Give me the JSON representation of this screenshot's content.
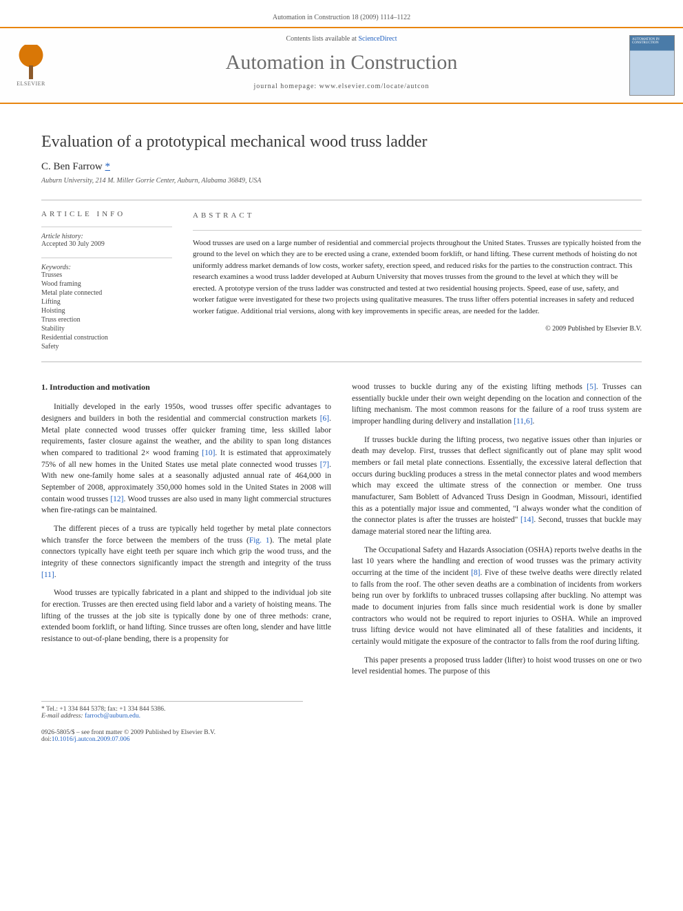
{
  "header": {
    "citation": "Automation in Construction 18 (2009) 1114–1122"
  },
  "banner": {
    "elsevier_label": "ELSEVIER",
    "contents_prefix": "Contents lists available at ",
    "contents_link": "ScienceDirect",
    "journal_title": "Automation in Construction",
    "homepage_prefix": "journal homepage: ",
    "homepage_url": "www.elsevier.com/locate/autcon",
    "cover_label": "AUTOMATION IN CONSTRUCTION"
  },
  "article": {
    "title": "Evaluation of a prototypical mechanical wood truss ladder",
    "author": "C. Ben Farrow",
    "author_marker": "*",
    "affiliation": "Auburn University, 214 M. Miller Gorrie Center, Auburn, Alabama 36849, USA"
  },
  "info": {
    "heading": "ARTICLE INFO",
    "history_label": "Article history:",
    "history_text": "Accepted 30 July 2009",
    "keywords_label": "Keywords:",
    "keywords": [
      "Trusses",
      "Wood framing",
      "Metal plate connected",
      "Lifting",
      "Hoisting",
      "Truss erection",
      "Stability",
      "Residential construction",
      "Safety"
    ]
  },
  "abstract": {
    "heading": "ABSTRACT",
    "text": "Wood trusses are used on a large number of residential and commercial projects throughout the United States. Trusses are typically hoisted from the ground to the level on which they are to be erected using a crane, extended boom forklift, or hand lifting. These current methods of hoisting do not uniformly address market demands of low costs, worker safety, erection speed, and reduced risks for the parties to the construction contract. This research examines a wood truss ladder developed at Auburn University that moves trusses from the ground to the level at which they will be erected. A prototype version of the truss ladder was constructed and tested at two residential housing projects. Speed, ease of use, safety, and worker fatigue were investigated for these two projects using qualitative measures. The truss lifter offers potential increases in safety and reduced worker fatigue. Additional trial versions, along with key improvements in specific areas, are needed for the ladder.",
    "copyright": "© 2009 Published by Elsevier B.V."
  },
  "body": {
    "section_heading": "1. Introduction and motivation",
    "left_paragraphs": [
      "Initially developed in the early 1950s, wood trusses offer specific advantages to designers and builders in both the residential and commercial construction markets [6]. Metal plate connected wood trusses offer quicker framing time, less skilled labor requirements, faster closure against the weather, and the ability to span long distances when compared to traditional 2× wood framing [10]. It is estimated that approximately 75% of all new homes in the United States use metal plate connected wood trusses [7]. With new one-family home sales at a seasonally adjusted annual rate of 464,000 in September of 2008, approximately 350,000 homes sold in the United States in 2008 will contain wood trusses [12]. Wood trusses are also used in many light commercial structures when fire-ratings can be maintained.",
      "The different pieces of a truss are typically held together by metal plate connectors which transfer the force between the members of the truss (Fig. 1). The metal plate connectors typically have eight teeth per square inch which grip the wood truss, and the integrity of these connectors significantly impact the strength and integrity of the truss [11].",
      "Wood trusses are typically fabricated in a plant and shipped to the individual job site for erection. Trusses are then erected using field labor and a variety of hoisting means. The lifting of the trusses at the job site is typically done by one of three methods: crane, extended boom forklift, or hand lifting. Since trusses are often long, slender and have little resistance to out-of-plane bending, there is a propensity for"
    ],
    "right_paragraphs": [
      "wood trusses to buckle during any of the existing lifting methods [5]. Trusses can essentially buckle under their own weight depending on the location and connection of the lifting mechanism. The most common reasons for the failure of a roof truss system are improper handling during delivery and installation [11,6].",
      "If trusses buckle during the lifting process, two negative issues other than injuries or death may develop. First, trusses that deflect significantly out of plane may split wood members or fail metal plate connections. Essentially, the excessive lateral deflection that occurs during buckling produces a stress in the metal connector plates and wood members which may exceed the ultimate stress of the connection or member. One truss manufacturer, Sam Boblett of Advanced Truss Design in Goodman, Missouri, identified this as a potentially major issue and commented, \"I always wonder what the condition of the connector plates is after the trusses are hoisted\" [14]. Second, trusses that buckle may damage material stored near the lifting area.",
      "The Occupational Safety and Hazards Association (OSHA) reports twelve deaths in the last 10 years where the handling and erection of wood trusses was the primary activity occurring at the time of the incident [8]. Five of these twelve deaths were directly related to falls from the roof. The other seven deaths are a combination of incidents from workers being run over by forklifts to unbraced trusses collapsing after buckling. No attempt was made to document injuries from falls since much residential work is done by smaller contractors who would not be required to report injuries to OSHA. While an improved truss lifting device would not have eliminated all of these fatalities and incidents, it certainly would mitigate the exposure of the contractor to falls from the roof during lifting.",
      "This paper presents a proposed truss ladder (lifter) to hoist wood trusses on one or two level residential homes. The purpose of this"
    ]
  },
  "footnote": {
    "corr_label": "* Tel.: +1 334 844 5378; fax: +1 334 844 5386.",
    "email_label": "E-mail address:",
    "email": "farrocb@auburn.edu."
  },
  "doi": {
    "line1": "0926-5805/$ – see front matter © 2009 Published by Elsevier B.V.",
    "line2_prefix": "doi:",
    "line2_link": "10.1016/j.autcon.2009.07.006"
  },
  "colors": {
    "accent_orange": "#e8850f",
    "link_blue": "#2060c0",
    "text_gray": "#555",
    "body_text": "#2b2b2b"
  }
}
